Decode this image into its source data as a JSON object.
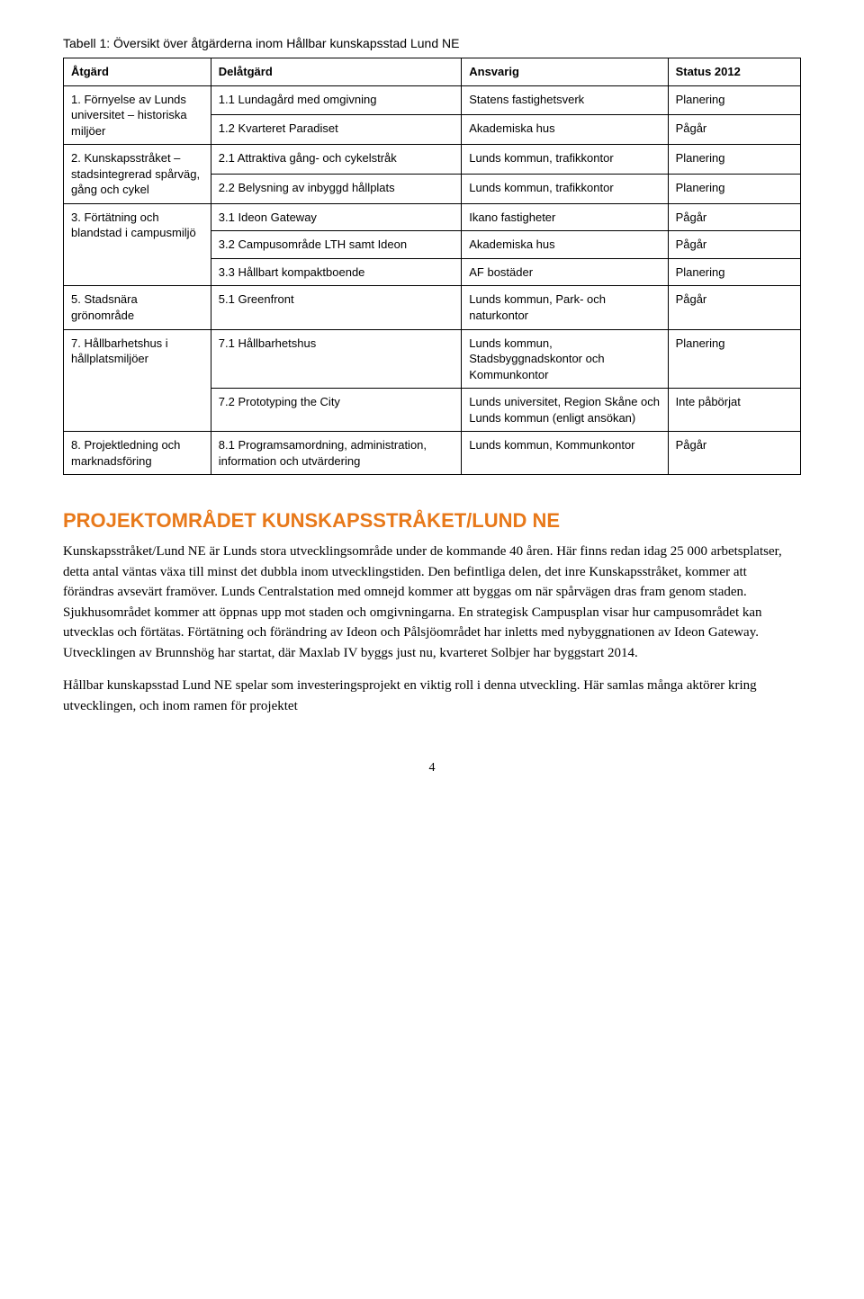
{
  "table": {
    "caption": "Tabell 1: Översikt över åtgärderna inom Hållbar kunskapsstad Lund NE",
    "headers": {
      "atgard": "Åtgärd",
      "delatgard": "Delåtgärd",
      "ansvarig": "Ansvarig",
      "status": "Status 2012"
    },
    "rows": {
      "r1": {
        "atgard": "1. Förnyelse av Lunds universitet – historiska miljöer",
        "d1": "1.1 Lundagård med omgivning",
        "a1": "Statens fastighetsverk",
        "s1": "Planering",
        "d2": "1.2 Kvarteret Paradiset",
        "a2": "Akademiska hus",
        "s2": "Pågår"
      },
      "r2": {
        "atgard": "2. Kunskapsstråket – stadsintegrerad spårväg, gång och cykel",
        "d1": "2.1 Attraktiva gång- och cykelstråk",
        "a1": "Lunds kommun, trafikkontor",
        "s1": "Planering",
        "d2": "2.2 Belysning av inbyggd hållplats",
        "a2": "Lunds kommun, trafikkontor",
        "s2": "Planering"
      },
      "r3": {
        "atgard": "3. Förtätning och blandstad i campusmiljö",
        "d1": "3.1 Ideon Gateway",
        "a1": "Ikano fastigheter",
        "s1": "Pågår",
        "d2": "3.2 Campusområde LTH samt Ideon",
        "a2": "Akademiska hus",
        "s2": "Pågår",
        "d3": "3.3 Hållbart kompaktboende",
        "a3": "AF bostäder",
        "s3": "Planering"
      },
      "r5": {
        "atgard": "5. Stadsnära grönområde",
        "d1": "5.1 Greenfront",
        "a1": "Lunds kommun, Park- och naturkontor",
        "s1": "Pågår"
      },
      "r7": {
        "atgard": "7. Hållbarhetshus i hållplatsmiljöer",
        "d1": "7.1 Hållbarhetshus",
        "a1": "Lunds kommun, Stadsbyggnadskontor och Kommunkontor",
        "s1": "Planering",
        "d2": "7.2 Prototyping the City",
        "a2": "Lunds universitet, Region Skåne och Lunds kommun (enligt ansökan)",
        "s2": "Inte påbörjat"
      },
      "r8": {
        "atgard": "8. Projektledning och marknadsföring",
        "d1": "8.1 Programsamordning, administration, information och utvärdering",
        "a1": "Lunds kommun, Kommunkontor",
        "s1": "Pågår"
      }
    }
  },
  "section": {
    "heading": "PROJEKTOMRÅDET KUNSKAPSSTRÅKET/LUND NE",
    "heading_color": "#e8791a",
    "p1": "Kunskapsstråket/Lund NE är Lunds stora utvecklingsområde under de kommande 40 åren. Här finns redan idag 25 000 arbetsplatser, detta antal väntas växa till minst det dubbla inom utvecklingstiden. Den befintliga delen, det inre Kunskapsstråket, kommer att förändras avsevärt framöver. Lunds Centralstation med omnejd kommer att byggas om när spårvägen dras fram genom staden. Sjukhusområdet kommer att öppnas upp mot staden och omgivningarna. En strategisk Campusplan visar hur campusområdet kan utvecklas och förtätas. Förtätning och förändring av Ideon och Pålsjöområdet har inletts med nybyggnationen av Ideon Gateway. Utvecklingen av Brunnshög har startat, där Maxlab IV byggs just nu, kvarteret Solbjer har byggstart 2014.",
    "p2": "Hållbar kunskapsstad Lund NE spelar som investeringsprojekt en viktig roll i denna utveckling. Här samlas många aktörer kring utvecklingen, och inom ramen för projektet"
  },
  "page_number": "4",
  "colors": {
    "text": "#000000",
    "border": "#000000",
    "background": "#ffffff"
  }
}
